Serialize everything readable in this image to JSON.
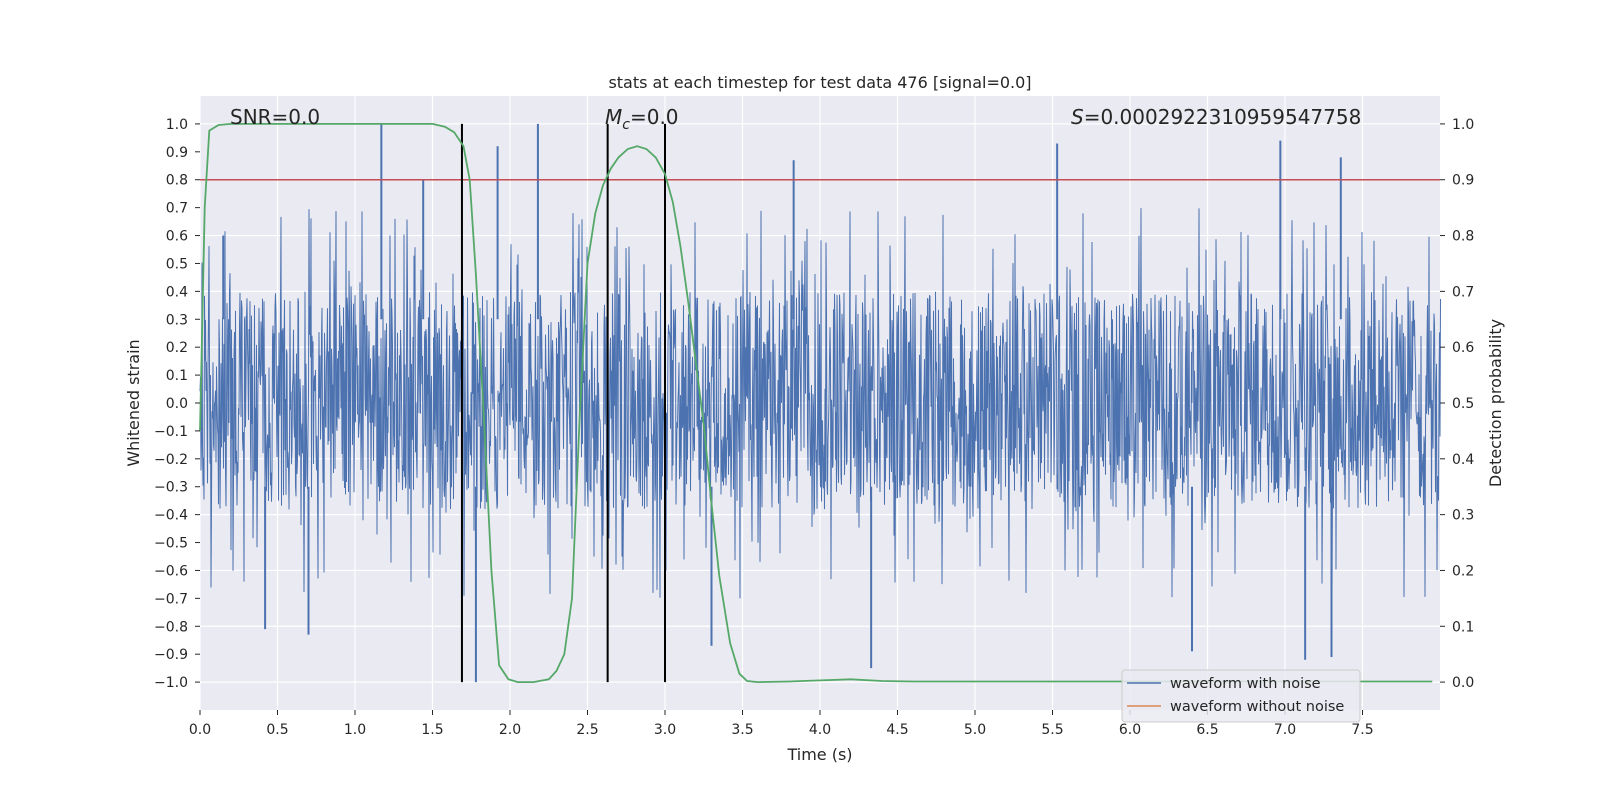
{
  "chart_data": {
    "type": "line",
    "title": "stats at each timestep for test data 476 [signal=0.0]",
    "xlabel": "Time (s)",
    "ylabel": "Whitened strain",
    "ylabel_right": "Detection probability",
    "xlim": [
      0.0,
      8.0
    ],
    "ylim": [
      -1.1,
      1.1
    ],
    "ylim_right": [
      -0.05,
      1.05
    ],
    "x_ticks": [
      "0.0",
      "0.5",
      "1.0",
      "1.5",
      "2.0",
      "2.5",
      "3.0",
      "3.5",
      "4.0",
      "4.5",
      "5.0",
      "5.5",
      "6.0",
      "6.5",
      "7.0",
      "7.5"
    ],
    "y_ticks": [
      "1.0",
      "0.9",
      "0.8",
      "0.7",
      "0.6",
      "0.5",
      "0.4",
      "0.3",
      "0.2",
      "0.1",
      "0.0",
      "-0.1",
      "-0.2",
      "-0.3",
      "-0.4",
      "-0.5",
      "-0.6",
      "-0.7",
      "-0.8",
      "-0.9",
      "-1.0"
    ],
    "y_ticks_right": [
      "1.0",
      "0.9",
      "0.8",
      "0.7",
      "0.6",
      "0.5",
      "0.4",
      "0.3",
      "0.2",
      "0.1",
      "0.0"
    ],
    "annotations": {
      "snr": "SNR=0.0",
      "mc_symbol": "M",
      "mc_sub": "c",
      "mc_value": "=0.0",
      "s_symbol": "S",
      "s_value": "=0.0002922310959547758"
    },
    "threshold": {
      "value": 0.9,
      "axis": "right",
      "color": "#c44e52"
    },
    "vertical_lines": [
      1.69,
      2.63,
      3.0
    ],
    "legend": {
      "placement": "lower-right",
      "entries": [
        {
          "label": "waveform with noise",
          "color": "#4c72b0"
        },
        {
          "label": "waveform without noise",
          "color": "#dd8452"
        }
      ]
    },
    "series": [
      {
        "name": "waveform with noise",
        "color": "#4c72b0",
        "amplitude_band_typical": [
          -0.38,
          0.4
        ],
        "peak_max": [
          [
            0.15,
            0.6
          ],
          [
            1.17,
            1.0
          ],
          [
            1.44,
            0.8
          ],
          [
            1.92,
            0.92
          ],
          [
            2.18,
            1.0
          ],
          [
            3.83,
            0.87
          ],
          [
            5.53,
            0.93
          ],
          [
            6.97,
            0.94
          ],
          [
            7.36,
            0.88
          ]
        ],
        "peak_min": [
          [
            0.42,
            -0.81
          ],
          [
            0.7,
            -0.83
          ],
          [
            1.78,
            -1.0
          ],
          [
            3.0,
            -0.83
          ],
          [
            3.3,
            -0.87
          ],
          [
            4.33,
            -0.95
          ],
          [
            6.4,
            -0.89
          ],
          [
            7.13,
            -0.92
          ],
          [
            7.3,
            -0.91
          ]
        ]
      },
      {
        "name": "detection probability",
        "axis": "right",
        "color": "#55a868",
        "x": [
          0.0,
          0.03,
          0.06,
          0.12,
          0.2,
          0.4,
          0.8,
          1.0,
          1.2,
          1.4,
          1.5,
          1.58,
          1.64,
          1.7,
          1.74,
          1.78,
          1.83,
          1.88,
          1.93,
          1.99,
          2.05,
          2.15,
          2.25,
          2.3,
          2.35,
          2.4,
          2.45,
          2.5,
          2.55,
          2.6,
          2.65,
          2.7,
          2.76,
          2.82,
          2.88,
          2.94,
          3.0,
          3.05,
          3.1,
          3.15,
          3.2,
          3.25,
          3.3,
          3.35,
          3.42,
          3.48,
          3.53,
          3.6,
          3.8,
          4.0,
          4.2,
          4.4,
          4.6,
          5.0,
          5.5,
          6.0,
          6.5,
          7.0,
          7.5,
          7.95
        ],
        "values": [
          0.45,
          0.85,
          0.988,
          0.998,
          1.0,
          1.0,
          1.0,
          1.0,
          1.0,
          1.0,
          1.0,
          0.995,
          0.985,
          0.96,
          0.9,
          0.73,
          0.48,
          0.2,
          0.03,
          0.005,
          0.0,
          0.0,
          0.005,
          0.02,
          0.05,
          0.15,
          0.48,
          0.75,
          0.84,
          0.89,
          0.92,
          0.94,
          0.955,
          0.96,
          0.955,
          0.94,
          0.91,
          0.86,
          0.78,
          0.68,
          0.57,
          0.46,
          0.32,
          0.19,
          0.07,
          0.015,
          0.002,
          0.0,
          0.001,
          0.003,
          0.005,
          0.002,
          0.001,
          0.001,
          0.001,
          0.001,
          0.001,
          0.001,
          0.001,
          0.001
        ]
      }
    ]
  }
}
